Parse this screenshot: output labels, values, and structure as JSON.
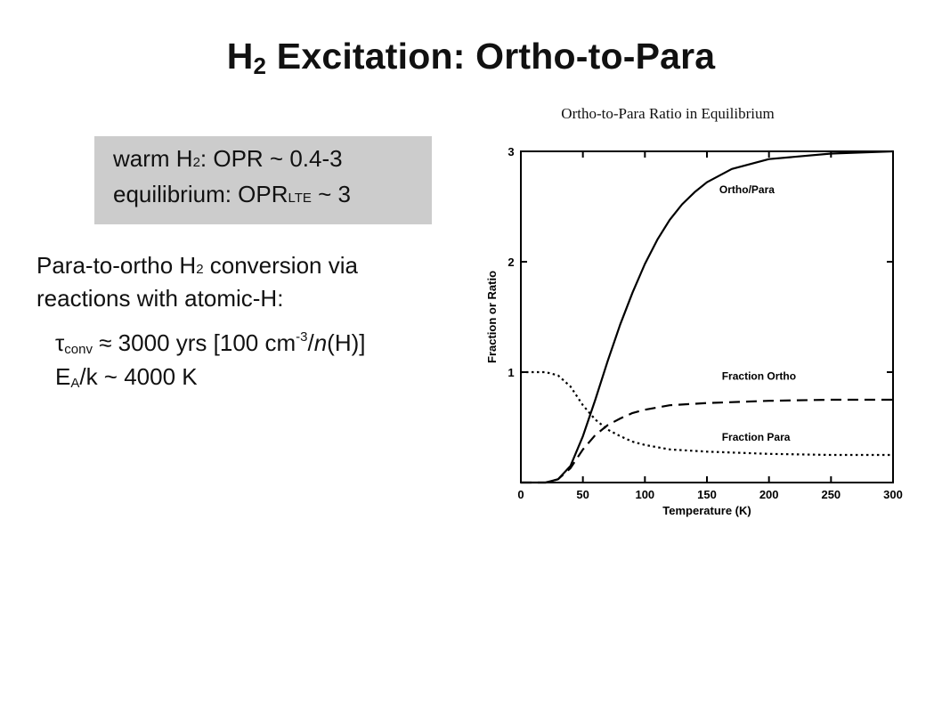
{
  "slide": {
    "title_pre": "H",
    "title_sub": "2",
    "title_post": " Excitation: Ortho-to-Para"
  },
  "box": {
    "line1_a": "warm H",
    "line1_sub": "2",
    "line1_b": ": OPR ~ 0.4-3",
    "line2_a": "equilibrium: OPR",
    "line2_sub": "LTE",
    "line2_b": " ~ 3"
  },
  "text": {
    "para_line1_a": "Para-to-ortho H",
    "para_line1_sub": "2",
    "para_line1_b": " conversion via",
    "para_line2": "reactions with atomic-H:",
    "eq1_tau": "τ",
    "eq1_sub": "conv",
    "eq1_a": " ≈ 3000 yrs [100 cm",
    "eq1_sup": "-3",
    "eq1_b": "/",
    "eq1_n": "n",
    "eq1_c": "(H)]",
    "eq2_a": "E",
    "eq2_sub": "A",
    "eq2_b": "/k ~ 4000 K"
  },
  "chart_data": {
    "type": "line",
    "title": "Ortho-to-Para Ratio in Equilibrium",
    "xlabel": "Temperature (K)",
    "ylabel": "Fraction or Ratio",
    "xlim": [
      0,
      300
    ],
    "ylim": [
      0,
      3
    ],
    "x_ticks": [
      0,
      50,
      100,
      150,
      200,
      250,
      300
    ],
    "y_ticks": [
      1,
      2,
      3
    ],
    "grid": false,
    "series": [
      {
        "name": "Ortho/Para",
        "line_style": "solid",
        "x": [
          0,
          20,
          30,
          40,
          50,
          60,
          70,
          80,
          90,
          100,
          110,
          120,
          130,
          140,
          150,
          170,
          200,
          250,
          300
        ],
        "y": [
          0,
          0,
          0.03,
          0.15,
          0.42,
          0.75,
          1.1,
          1.43,
          1.72,
          1.98,
          2.2,
          2.38,
          2.52,
          2.63,
          2.72,
          2.84,
          2.93,
          2.98,
          3.0
        ]
      },
      {
        "name": "Fraction Ortho",
        "line_style": "dashed",
        "x": [
          0,
          20,
          30,
          40,
          50,
          60,
          70,
          80,
          90,
          100,
          120,
          150,
          200,
          250,
          300
        ],
        "y": [
          0,
          0,
          0.03,
          0.13,
          0.3,
          0.43,
          0.52,
          0.58,
          0.63,
          0.66,
          0.7,
          0.72,
          0.74,
          0.75,
          0.75
        ]
      },
      {
        "name": "Fraction Para",
        "line_style": "dotted",
        "x": [
          0,
          20,
          30,
          40,
          50,
          60,
          70,
          80,
          90,
          100,
          120,
          150,
          200,
          250,
          300
        ],
        "y": [
          1.0,
          1.0,
          0.97,
          0.87,
          0.7,
          0.57,
          0.48,
          0.42,
          0.37,
          0.34,
          0.3,
          0.28,
          0.26,
          0.25,
          0.25
        ]
      }
    ],
    "annotations": [
      {
        "text": "Ortho/Para",
        "x": 160,
        "y": 2.62
      },
      {
        "text": "Fraction Ortho",
        "x": 162,
        "y": 0.93
      },
      {
        "text": "Fraction Para",
        "x": 162,
        "y": 0.38
      }
    ]
  }
}
